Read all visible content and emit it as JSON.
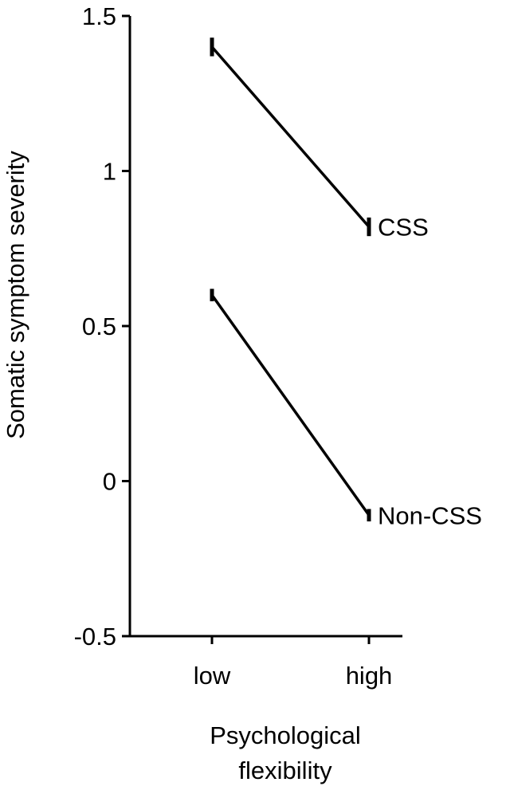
{
  "chart_data": {
    "type": "line",
    "x": [
      "low",
      "high"
    ],
    "xlabel": [
      "Psychological",
      "flexibility"
    ],
    "ylabel": "Somatic symptom severity",
    "ylim": [
      -0.5,
      1.5
    ],
    "yticks": [
      {
        "value": 1.5,
        "label": "1.5"
      },
      {
        "value": 1,
        "label": "1"
      },
      {
        "value": 0.5,
        "label": "0.5"
      },
      {
        "value": 0,
        "label": "0"
      },
      {
        "value": -0.5,
        "label": "-0.5"
      }
    ],
    "grid": false,
    "legend": "direct labels at line ends",
    "series": [
      {
        "name": "CSS",
        "values": [
          1.4,
          0.82
        ],
        "error": [
          0.03,
          0.03
        ]
      },
      {
        "name": "Non-CSS",
        "values": [
          0.6,
          -0.11
        ],
        "error": [
          0.02,
          0.02
        ]
      }
    ],
    "colors": {
      "line": "#000000"
    }
  }
}
